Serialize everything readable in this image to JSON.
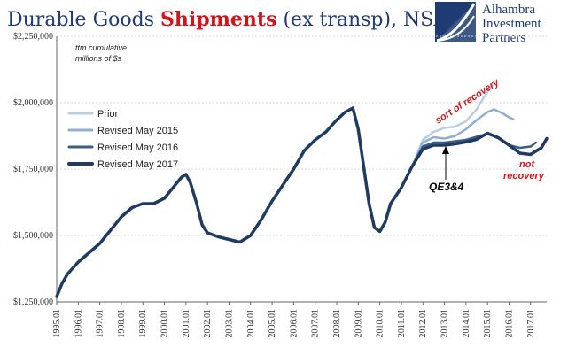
{
  "chart_data": {
    "type": "line",
    "title_parts": [
      "Durable Goods ",
      "Shipments",
      " (ex transp), NSA"
    ],
    "unit_note": [
      "ttm cumulative",
      "millions of $s"
    ],
    "logo": [
      "Alhambra",
      "Investment",
      "Partners"
    ],
    "ylim": [
      1250000,
      2250000
    ],
    "yticks": [
      1250000,
      1500000,
      1750000,
      2000000,
      2250000
    ],
    "ytick_labels": [
      "$1,250,000",
      "$1,500,000",
      "$1,750,000",
      "$2,000,000",
      "$2,250,000"
    ],
    "xlim": [
      1995.0,
      2017.75
    ],
    "xticks": [
      1995,
      1996,
      1997,
      1998,
      1999,
      2000,
      2001,
      2002,
      2003,
      2004,
      2005,
      2006,
      2007,
      2008,
      2009,
      2010,
      2011,
      2012,
      2013,
      2014,
      2015,
      2016,
      2017
    ],
    "xtick_labels": [
      "1995.01",
      "1996.01",
      "1997.01",
      "1998.01",
      "1999.01",
      "2000.01",
      "2001.01",
      "2002.01",
      "2003.01",
      "2004.01",
      "2005.01",
      "2006.01",
      "2007.01",
      "2008.01",
      "2009.01",
      "2010.01",
      "2011.01",
      "2012.01",
      "2013.01",
      "2014.01",
      "2015.01",
      "2016.01",
      "2017.01"
    ],
    "grid": true,
    "legend_position": "top-left",
    "base": {
      "x": [
        1995.0,
        1995.25,
        1995.5,
        1996.0,
        1996.5,
        1997.0,
        1997.5,
        1998.0,
        1998.5,
        1999.0,
        1999.5,
        2000.0,
        2000.5,
        2000.8,
        2001.0,
        2001.2,
        2001.5,
        2001.75,
        2002.0,
        2002.5,
        2003.0,
        2003.5,
        2004.0,
        2004.5,
        2005.0,
        2005.5,
        2006.0,
        2006.5,
        2007.0,
        2007.5,
        2008.0,
        2008.4,
        2008.75,
        2009.0,
        2009.25,
        2009.5,
        2009.75,
        2010.0,
        2010.25,
        2010.5,
        2011.0,
        2011.5
      ],
      "y": [
        1270000,
        1320000,
        1355000,
        1400000,
        1435000,
        1470000,
        1520000,
        1570000,
        1605000,
        1620000,
        1620000,
        1640000,
        1690000,
        1720000,
        1730000,
        1700000,
        1620000,
        1540000,
        1510000,
        1495000,
        1485000,
        1475000,
        1500000,
        1560000,
        1630000,
        1690000,
        1750000,
        1820000,
        1860000,
        1890000,
        1935000,
        1965000,
        1980000,
        1900000,
        1760000,
        1620000,
        1530000,
        1515000,
        1550000,
        1620000,
        1680000,
        1760000
      ]
    },
    "series": [
      {
        "name": "Prior",
        "color": "#b9cde2",
        "width": 2.5,
        "x": [
          2011.5,
          2012.0,
          2012.5,
          2013.0,
          2013.5,
          2014.0,
          2014.5,
          2014.75,
          2015.0,
          2015.2
        ],
        "y": [
          1760000,
          1860000,
          1890000,
          1905000,
          1910000,
          1930000,
          1975000,
          2010000,
          2040000,
          2065000
        ]
      },
      {
        "name": "Revised May 2015",
        "color": "#8faed3",
        "width": 2.5,
        "x": [
          2011.5,
          2012.0,
          2012.5,
          2013.0,
          2013.5,
          2014.0,
          2014.5,
          2015.0,
          2015.3,
          2015.7,
          2016.0,
          2016.2
        ],
        "y": [
          1760000,
          1850000,
          1870000,
          1865000,
          1875000,
          1900000,
          1935000,
          1965000,
          1975000,
          1960000,
          1945000,
          1938000
        ]
      },
      {
        "name": "Revised May 2016",
        "color": "#3c5d86",
        "width": 2.5,
        "x": [
          2011.5,
          2012.0,
          2012.5,
          2013.0,
          2013.5,
          2014.0,
          2014.5,
          2015.0,
          2015.5,
          2016.0,
          2016.5,
          2017.0,
          2017.25
        ],
        "y": [
          1760000,
          1835000,
          1850000,
          1850000,
          1855000,
          1860000,
          1872000,
          1882000,
          1870000,
          1840000,
          1830000,
          1835000,
          1850000
        ]
      },
      {
        "name": "Revised May 2017",
        "color": "#1f3b63",
        "width": 3.5,
        "x": [
          2011.5,
          2012.0,
          2012.5,
          2013.0,
          2013.5,
          2014.0,
          2014.5,
          2015.0,
          2015.5,
          2016.0,
          2016.5,
          2017.0,
          2017.5,
          2017.75
        ],
        "y": [
          1760000,
          1825000,
          1840000,
          1840000,
          1845000,
          1852000,
          1862000,
          1885000,
          1868000,
          1840000,
          1810000,
          1805000,
          1830000,
          1865000
        ]
      }
    ],
    "annotations": {
      "sort_of_recovery": "sort of recovery",
      "not_recovery": [
        "not",
        "recovery"
      ],
      "qe": "QE3&4"
    }
  }
}
